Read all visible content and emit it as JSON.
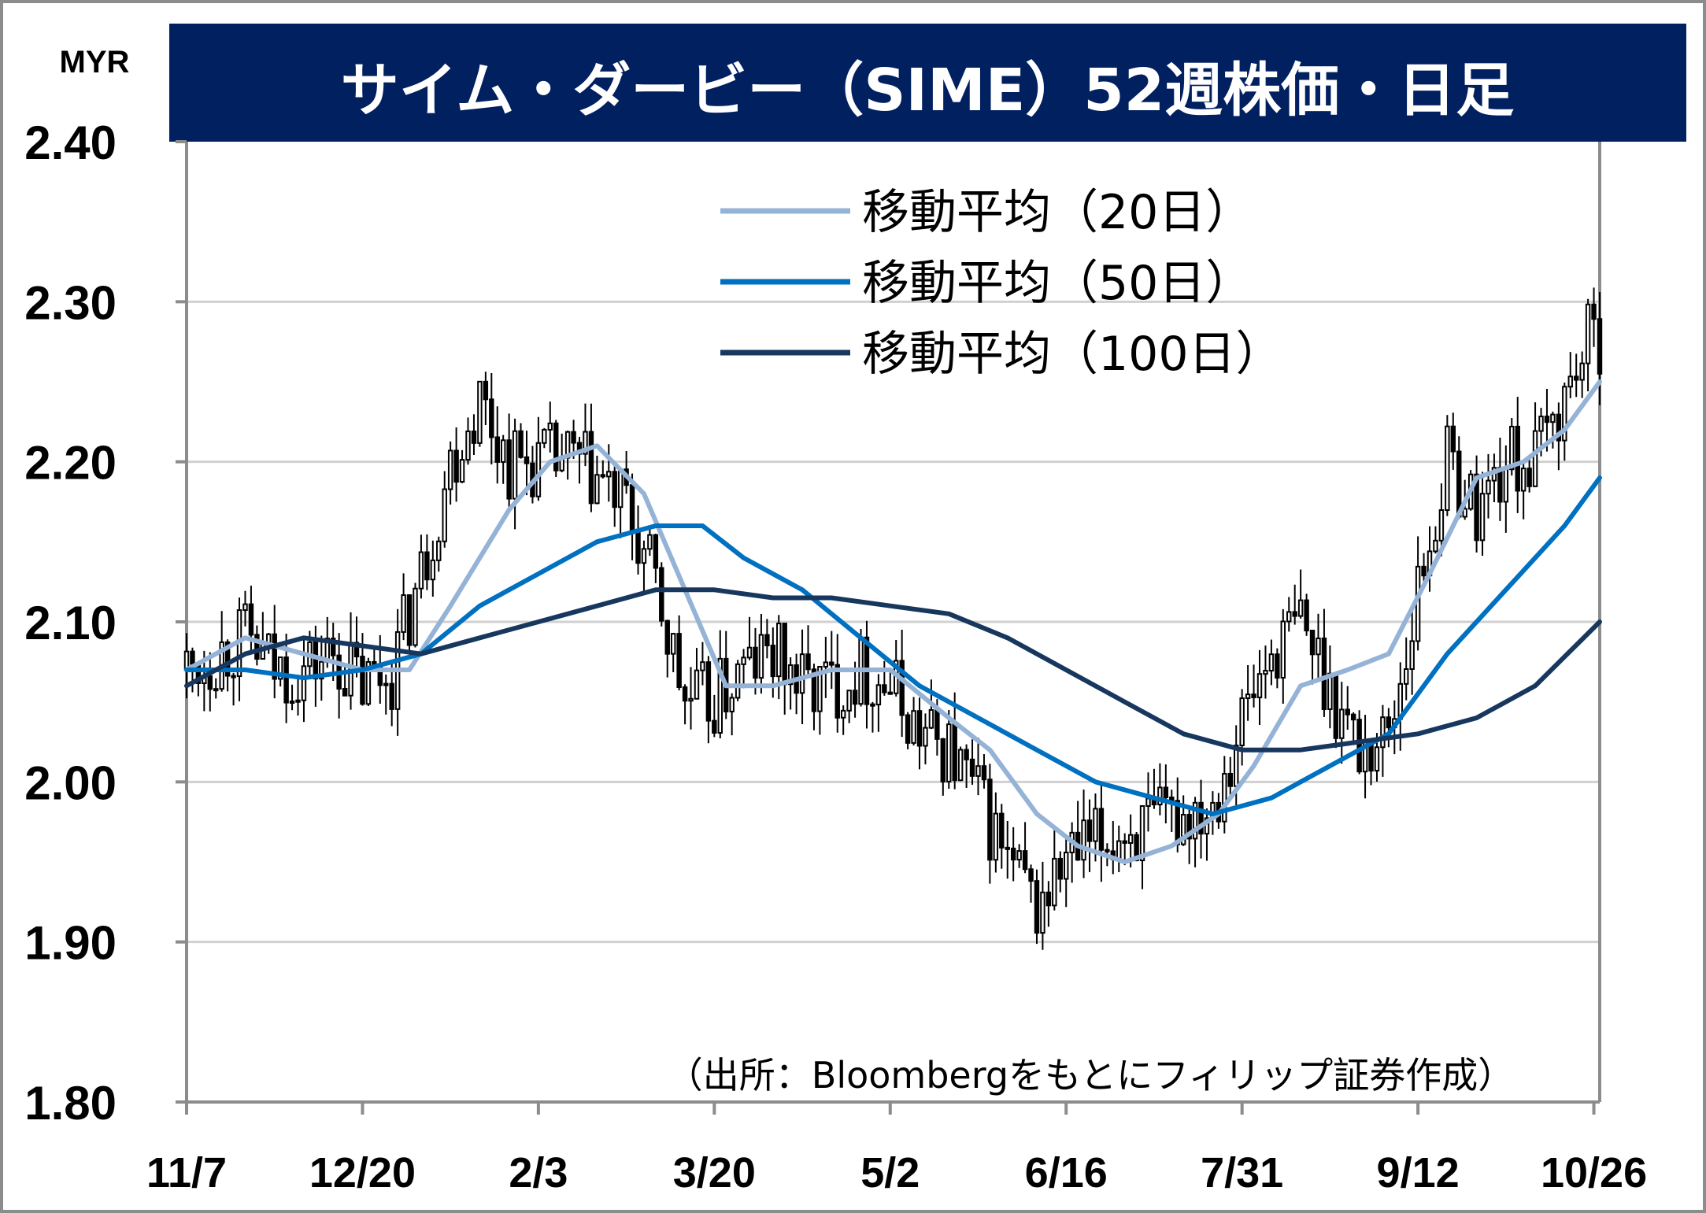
{
  "chart_data": {
    "type": "candlestick",
    "title": "サイム・ダービー（SIME）52週株価・日足",
    "currency_label": "MYR",
    "source_note": "（出所：Bloombergをもとにフィリップ証券作成）",
    "ylim": [
      1.8,
      2.4
    ],
    "y_ticks": [
      "2.40",
      "2.30",
      "2.20",
      "2.10",
      "2.00",
      "1.90",
      "1.80"
    ],
    "y_tick_values": [
      2.4,
      2.3,
      2.2,
      2.1,
      2.0,
      1.9,
      1.8
    ],
    "x_tick_labels": [
      "11/7",
      "12/20",
      "2/3",
      "3/20",
      "5/2",
      "6/16",
      "7/31",
      "9/12",
      "10/26"
    ],
    "x_tick_index": [
      0,
      30,
      60,
      90,
      120,
      150,
      180,
      210,
      240
    ],
    "grid": true,
    "legend_placement": "top-center",
    "series": [
      {
        "name": "移動平均（20日）",
        "color": "#95b3d7",
        "key": "ma20"
      },
      {
        "name": "移動平均（50日）",
        "color": "#0070c0",
        "key": "ma50"
      },
      {
        "name": "移動平均（100日）",
        "color": "#17375e",
        "key": "ma100"
      }
    ],
    "ma_points": {
      "ma20": [
        [
          0,
          2.07
        ],
        [
          10,
          2.09
        ],
        [
          20,
          2.08
        ],
        [
          30,
          2.07
        ],
        [
          38,
          2.07
        ],
        [
          45,
          2.11
        ],
        [
          55,
          2.17
        ],
        [
          62,
          2.2
        ],
        [
          70,
          2.21
        ],
        [
          78,
          2.18
        ],
        [
          85,
          2.12
        ],
        [
          92,
          2.06
        ],
        [
          100,
          2.06
        ],
        [
          110,
          2.07
        ],
        [
          120,
          2.07
        ],
        [
          130,
          2.04
        ],
        [
          137,
          2.02
        ],
        [
          145,
          1.98
        ],
        [
          152,
          1.96
        ],
        [
          160,
          1.95
        ],
        [
          168,
          1.96
        ],
        [
          176,
          1.98
        ],
        [
          182,
          2.01
        ],
        [
          190,
          2.06
        ],
        [
          198,
          2.07
        ],
        [
          205,
          2.08
        ],
        [
          212,
          2.13
        ],
        [
          220,
          2.19
        ],
        [
          228,
          2.2
        ],
        [
          235,
          2.22
        ],
        [
          241,
          2.25
        ]
      ],
      "ma50": [
        [
          0,
          2.07
        ],
        [
          10,
          2.07
        ],
        [
          20,
          2.065
        ],
        [
          30,
          2.07
        ],
        [
          40,
          2.08
        ],
        [
          50,
          2.11
        ],
        [
          60,
          2.13
        ],
        [
          70,
          2.15
        ],
        [
          80,
          2.16
        ],
        [
          88,
          2.16
        ],
        [
          95,
          2.14
        ],
        [
          105,
          2.12
        ],
        [
          115,
          2.09
        ],
        [
          125,
          2.06
        ],
        [
          135,
          2.04
        ],
        [
          145,
          2.02
        ],
        [
          155,
          2.0
        ],
        [
          165,
          1.99
        ],
        [
          175,
          1.98
        ],
        [
          185,
          1.99
        ],
        [
          195,
          2.01
        ],
        [
          205,
          2.03
        ],
        [
          215,
          2.08
        ],
        [
          225,
          2.12
        ],
        [
          235,
          2.16
        ],
        [
          241,
          2.19
        ]
      ],
      "ma100": [
        [
          0,
          2.06
        ],
        [
          10,
          2.08
        ],
        [
          20,
          2.09
        ],
        [
          30,
          2.085
        ],
        [
          40,
          2.08
        ],
        [
          50,
          2.09
        ],
        [
          60,
          2.1
        ],
        [
          70,
          2.11
        ],
        [
          80,
          2.12
        ],
        [
          90,
          2.12
        ],
        [
          100,
          2.115
        ],
        [
          110,
          2.115
        ],
        [
          120,
          2.11
        ],
        [
          130,
          2.105
        ],
        [
          140,
          2.09
        ],
        [
          150,
          2.07
        ],
        [
          160,
          2.05
        ],
        [
          170,
          2.03
        ],
        [
          180,
          2.02
        ],
        [
          190,
          2.02
        ],
        [
          200,
          2.025
        ],
        [
          210,
          2.03
        ],
        [
          220,
          2.04
        ],
        [
          230,
          2.06
        ],
        [
          241,
          2.1
        ]
      ]
    },
    "price_path": [
      [
        0,
        2.07
      ],
      [
        10,
        2.09
      ],
      [
        15,
        2.07
      ],
      [
        20,
        2.07
      ],
      [
        25,
        2.08
      ],
      [
        30,
        2.06
      ],
      [
        35,
        2.07
      ],
      [
        40,
        2.13
      ],
      [
        45,
        2.2
      ],
      [
        50,
        2.24
      ],
      [
        55,
        2.2
      ],
      [
        60,
        2.2
      ],
      [
        65,
        2.2
      ],
      [
        70,
        2.19
      ],
      [
        75,
        2.17
      ],
      [
        80,
        2.12
      ],
      [
        85,
        2.05
      ],
      [
        90,
        2.05
      ],
      [
        95,
        2.07
      ],
      [
        100,
        2.08
      ],
      [
        105,
        2.06
      ],
      [
        110,
        2.06
      ],
      [
        115,
        2.07
      ],
      [
        120,
        2.06
      ],
      [
        125,
        2.03
      ],
      [
        130,
        2.02
      ],
      [
        135,
        1.99
      ],
      [
        140,
        1.95
      ],
      [
        145,
        1.92
      ],
      [
        150,
        1.95
      ],
      [
        155,
        1.96
      ],
      [
        160,
        1.97
      ],
      [
        165,
        1.97
      ],
      [
        170,
        1.98
      ],
      [
        175,
        1.99
      ],
      [
        180,
        2.04
      ],
      [
        185,
        2.08
      ],
      [
        190,
        2.1
      ],
      [
        195,
        2.06
      ],
      [
        200,
        2.02
      ],
      [
        205,
        2.03
      ],
      [
        210,
        2.12
      ],
      [
        215,
        2.2
      ],
      [
        220,
        2.17
      ],
      [
        225,
        2.2
      ],
      [
        230,
        2.2
      ],
      [
        235,
        2.24
      ],
      [
        238,
        2.27
      ],
      [
        241,
        2.28
      ]
    ]
  }
}
